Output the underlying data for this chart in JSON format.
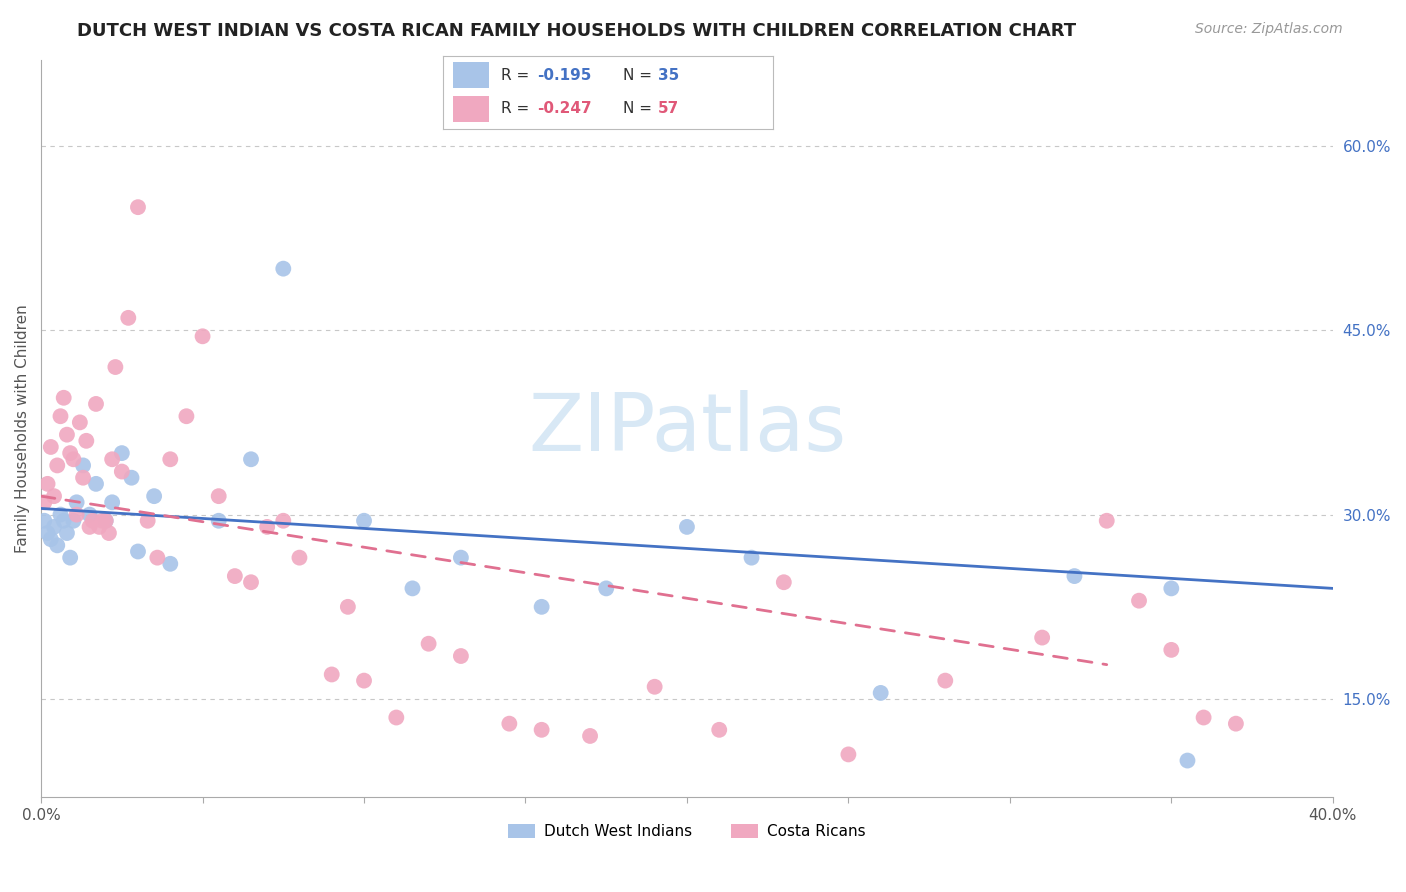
{
  "title": "DUTCH WEST INDIAN VS COSTA RICAN FAMILY HOUSEHOLDS WITH CHILDREN CORRELATION CHART",
  "source": "Source: ZipAtlas.com",
  "ylabel": "Family Households with Children",
  "ytick_labels": [
    "60.0%",
    "45.0%",
    "30.0%",
    "15.0%"
  ],
  "ytick_vals": [
    0.6,
    0.45,
    0.3,
    0.15
  ],
  "xlim": [
    0.0,
    0.4
  ],
  "ylim": [
    0.07,
    0.67
  ],
  "watermark": "ZIPatlas",
  "blue_scatter_x": [
    0.001,
    0.002,
    0.003,
    0.004,
    0.005,
    0.006,
    0.007,
    0.008,
    0.009,
    0.01,
    0.011,
    0.013,
    0.015,
    0.017,
    0.02,
    0.022,
    0.025,
    0.028,
    0.03,
    0.035,
    0.04,
    0.055,
    0.065,
    0.075,
    0.1,
    0.115,
    0.13,
    0.155,
    0.175,
    0.2,
    0.22,
    0.26,
    0.32,
    0.35,
    0.355
  ],
  "blue_scatter_y": [
    0.295,
    0.285,
    0.28,
    0.29,
    0.275,
    0.3,
    0.295,
    0.285,
    0.265,
    0.295,
    0.31,
    0.34,
    0.3,
    0.325,
    0.295,
    0.31,
    0.35,
    0.33,
    0.27,
    0.315,
    0.26,
    0.295,
    0.345,
    0.5,
    0.295,
    0.24,
    0.265,
    0.225,
    0.24,
    0.29,
    0.265,
    0.155,
    0.25,
    0.24,
    0.1
  ],
  "pink_scatter_x": [
    0.001,
    0.002,
    0.003,
    0.004,
    0.005,
    0.006,
    0.007,
    0.008,
    0.009,
    0.01,
    0.011,
    0.012,
    0.013,
    0.014,
    0.015,
    0.016,
    0.017,
    0.018,
    0.019,
    0.02,
    0.021,
    0.022,
    0.023,
    0.025,
    0.027,
    0.03,
    0.033,
    0.036,
    0.04,
    0.045,
    0.05,
    0.055,
    0.06,
    0.065,
    0.07,
    0.075,
    0.08,
    0.09,
    0.095,
    0.1,
    0.11,
    0.12,
    0.13,
    0.145,
    0.155,
    0.17,
    0.19,
    0.21,
    0.23,
    0.25,
    0.28,
    0.31,
    0.33,
    0.34,
    0.35,
    0.36,
    0.37
  ],
  "pink_scatter_y": [
    0.31,
    0.325,
    0.355,
    0.315,
    0.34,
    0.38,
    0.395,
    0.365,
    0.35,
    0.345,
    0.3,
    0.375,
    0.33,
    0.36,
    0.29,
    0.295,
    0.39,
    0.29,
    0.295,
    0.295,
    0.285,
    0.345,
    0.42,
    0.335,
    0.46,
    0.55,
    0.295,
    0.265,
    0.345,
    0.38,
    0.445,
    0.315,
    0.25,
    0.245,
    0.29,
    0.295,
    0.265,
    0.17,
    0.225,
    0.165,
    0.135,
    0.195,
    0.185,
    0.13,
    0.125,
    0.12,
    0.16,
    0.125,
    0.245,
    0.105,
    0.165,
    0.2,
    0.295,
    0.23,
    0.19,
    0.135,
    0.13
  ],
  "blue_line_x": [
    0.0,
    0.4
  ],
  "blue_line_y": [
    0.305,
    0.24
  ],
  "pink_line_x": [
    0.0,
    0.33
  ],
  "pink_line_y": [
    0.315,
    0.178
  ],
  "blue_color": "#4472c4",
  "pink_color": "#e07090",
  "blue_scatter_color": "#a8c4e8",
  "pink_scatter_color": "#f0a8c0",
  "grid_color": "#c8c8c8",
  "right_axis_color": "#4472c4",
  "background_color": "#ffffff",
  "watermark_color": "#d8e8f5",
  "title_fontsize": 13,
  "source_fontsize": 10,
  "ylabel_fontsize": 11,
  "tick_fontsize": 11,
  "legend_r1": "R = ",
  "legend_v1": "-0.195",
  "legend_n1": "N = ",
  "legend_c1": "35",
  "legend_r2": "R = ",
  "legend_v2": "-0.247",
  "legend_n2": "N = ",
  "legend_c2": "57",
  "blue_text_color": "#4472c4",
  "pink_text_color": "#e05878"
}
